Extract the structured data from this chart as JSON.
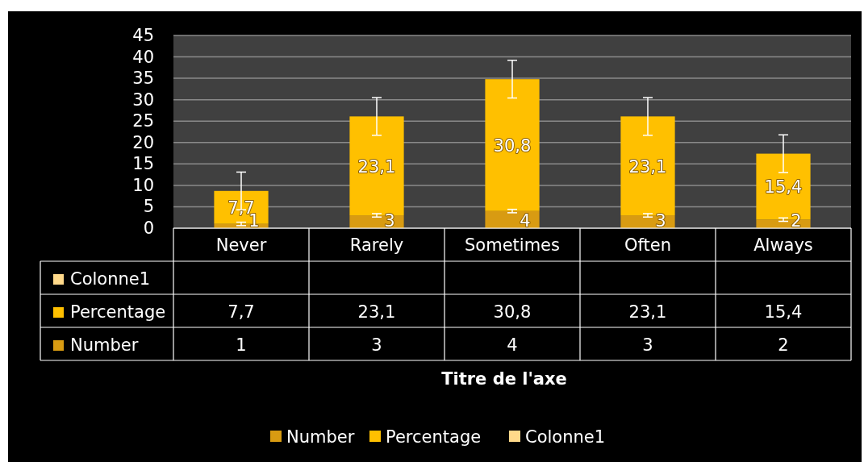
{
  "chart_data": {
    "type": "bar",
    "stacked": true,
    "categories": [
      "Never",
      "Rarely",
      "Sometimes",
      "Often",
      "Always"
    ],
    "series": [
      {
        "name": "Number",
        "color": "#d89b12",
        "values": [
          1,
          3,
          4,
          3,
          2
        ],
        "errors": [
          0.4,
          0.4,
          0.4,
          0.4,
          0.4
        ],
        "value_labels": [
          "1",
          "3",
          "4",
          "3",
          "2"
        ]
      },
      {
        "name": "Percentage",
        "color": "#ffc000",
        "values": [
          7.7,
          23.1,
          30.8,
          23.1,
          15.4
        ],
        "errors": [
          4.4,
          4.4,
          4.4,
          4.4,
          4.4
        ],
        "value_labels": [
          "7,7",
          "23,1",
          "30,8",
          "23,1",
          "15,4"
        ]
      },
      {
        "name": "Colonne1",
        "color": "#ffd98a",
        "values": [
          null,
          null,
          null,
          null,
          null
        ]
      }
    ],
    "ylim": [
      0,
      45
    ],
    "yticks": [
      0,
      5,
      10,
      15,
      20,
      25,
      30,
      35,
      40,
      45
    ],
    "grid": "y",
    "annotations": [
      "Titre de l'axe"
    ],
    "legend": "bottom"
  }
}
